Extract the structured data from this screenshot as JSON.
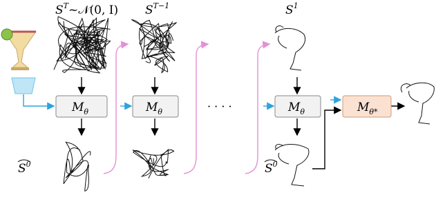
{
  "labels": {
    "noise": {
      "base": "S",
      "sup": "T",
      "rest": "~𝒩(0, I)"
    },
    "step": {
      "base": "S",
      "sup": "T−1"
    },
    "last": {
      "base": "S",
      "sup": "1"
    }
  },
  "models": [
    {
      "base": "M",
      "sub": "θ"
    },
    {
      "base": "M",
      "sub": "θ"
    },
    {
      "base": "M",
      "sub": "θ"
    },
    {
      "base": "M",
      "sub": "θ*"
    }
  ],
  "estimates": [
    {
      "base": "S",
      "sup": "0"
    },
    {
      "base": "S",
      "sup": "0"
    }
  ],
  "ellipsis": "· · · ·"
}
